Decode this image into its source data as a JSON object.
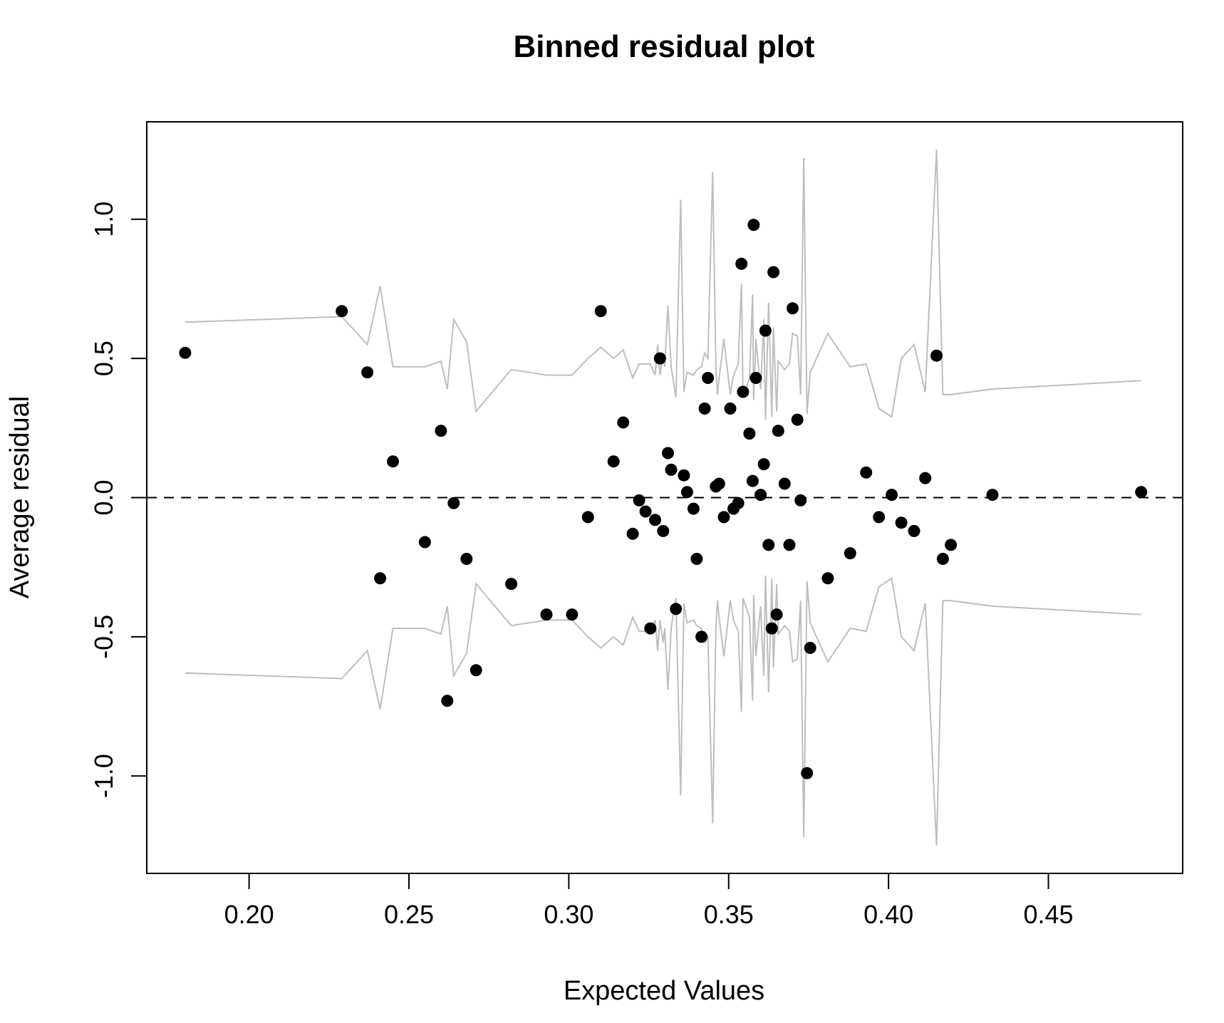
{
  "chart_data": {
    "type": "scatter",
    "title": "Binned residual plot",
    "xlabel": "Expected Values",
    "ylabel": "Average residual",
    "xlim": [
      0.168,
      0.492
    ],
    "ylim": [
      -1.35,
      1.35
    ],
    "xticks": [
      0.2,
      0.25,
      0.3,
      0.35,
      0.4,
      0.45
    ],
    "xtick_labels": [
      "0.20",
      "0.25",
      "0.30",
      "0.35",
      "0.40",
      "0.45"
    ],
    "yticks": [
      -1.0,
      -0.5,
      0.0,
      0.5,
      1.0
    ],
    "ytick_labels": [
      "-1.0",
      "-0.5",
      "0.0",
      "0.5",
      "1.0"
    ],
    "reference_line": {
      "y": 0,
      "style": "dashed"
    },
    "grid": false,
    "colors": {
      "points": "#000000",
      "bands": "#bebebe",
      "axes": "#000000"
    },
    "series": [
      {
        "type": "scatter",
        "x": [
          0.18,
          0.229,
          0.237,
          0.241,
          0.245,
          0.255,
          0.26,
          0.262,
          0.264,
          0.268,
          0.271,
          0.282,
          0.293,
          0.301,
          0.306,
          0.31,
          0.314,
          0.317,
          0.32,
          0.322,
          0.324,
          0.3255,
          0.327,
          0.3285,
          0.3295,
          0.331,
          0.332,
          0.3335,
          0.336,
          0.337,
          0.339,
          0.34,
          0.3415,
          0.3425,
          0.3435,
          0.346,
          0.347,
          0.3485,
          0.3505,
          0.3515,
          0.353,
          0.354,
          0.3545,
          0.3565,
          0.3575,
          0.3578,
          0.3585,
          0.36,
          0.361,
          0.3615,
          0.3625,
          0.3635,
          0.364,
          0.365,
          0.3655,
          0.3675,
          0.369,
          0.37,
          0.3715,
          0.3725,
          0.3745,
          0.3755,
          0.381,
          0.388,
          0.393,
          0.397,
          0.401,
          0.404,
          0.408,
          0.4115,
          0.415,
          0.417,
          0.4195,
          0.4325,
          0.479
        ],
        "y": [
          0.52,
          0.67,
          0.45,
          -0.29,
          0.13,
          -0.16,
          0.24,
          -0.73,
          -0.02,
          -0.22,
          -0.62,
          -0.31,
          -0.42,
          -0.42,
          -0.07,
          0.67,
          0.13,
          0.27,
          -0.13,
          -0.01,
          -0.05,
          -0.47,
          -0.08,
          0.5,
          -0.12,
          0.16,
          0.1,
          -0.4,
          0.08,
          0.02,
          -0.04,
          -0.22,
          -0.5,
          0.32,
          0.43,
          0.04,
          0.05,
          -0.07,
          0.32,
          -0.04,
          -0.02,
          0.84,
          0.38,
          0.23,
          0.06,
          0.98,
          0.43,
          0.01,
          0.12,
          0.6,
          -0.17,
          -0.47,
          0.81,
          -0.42,
          0.24,
          0.05,
          -0.17,
          0.68,
          0.28,
          -0.01,
          -0.99,
          -0.54,
          -0.29,
          -0.2,
          0.09,
          -0.07,
          0.01,
          -0.09,
          -0.12,
          0.07,
          0.51,
          -0.22,
          -0.17,
          0.01,
          0.02
        ]
      },
      {
        "type": "line",
        "x": [
          0.18,
          0.229,
          0.237,
          0.241,
          0.245,
          0.255,
          0.26,
          0.262,
          0.264,
          0.268,
          0.271,
          0.282,
          0.293,
          0.301,
          0.306,
          0.31,
          0.314,
          0.317,
          0.32,
          0.322,
          0.324,
          0.3255,
          0.327,
          0.3278,
          0.3285,
          0.3295,
          0.33,
          0.331,
          0.332,
          0.3335,
          0.335,
          0.336,
          0.337,
          0.339,
          0.34,
          0.3415,
          0.3425,
          0.3435,
          0.345,
          0.346,
          0.3465,
          0.347,
          0.3485,
          0.3505,
          0.3515,
          0.353,
          0.354,
          0.3545,
          0.3565,
          0.3575,
          0.3578,
          0.3585,
          0.36,
          0.361,
          0.3615,
          0.3625,
          0.3635,
          0.364,
          0.365,
          0.3655,
          0.3675,
          0.369,
          0.37,
          0.3715,
          0.3725,
          0.3735,
          0.3745,
          0.3755,
          0.381,
          0.388,
          0.393,
          0.397,
          0.401,
          0.404,
          0.408,
          0.4115,
          0.415,
          0.417,
          0.4195,
          0.4325,
          0.479
        ],
        "y": [
          0.63,
          0.65,
          0.55,
          0.76,
          0.47,
          0.47,
          0.49,
          0.39,
          0.64,
          0.56,
          0.31,
          0.46,
          0.44,
          0.44,
          0.5,
          0.54,
          0.5,
          0.53,
          0.43,
          0.48,
          0.48,
          0.48,
          0.44,
          0.55,
          0.44,
          0.52,
          0.47,
          0.69,
          0.47,
          0.36,
          1.07,
          0.38,
          0.45,
          0.44,
          0.46,
          0.47,
          0.52,
          0.5,
          1.17,
          0.47,
          0.37,
          0.43,
          0.57,
          0.37,
          0.44,
          0.48,
          0.77,
          0.36,
          0.43,
          0.73,
          0.35,
          0.57,
          0.39,
          0.64,
          0.28,
          0.7,
          0.29,
          0.61,
          0.31,
          0.49,
          0.46,
          0.48,
          0.59,
          0.58,
          0.37,
          1.22,
          0.3,
          0.45,
          0.59,
          0.47,
          0.48,
          0.32,
          0.29,
          0.5,
          0.55,
          0.38,
          1.25,
          0.37,
          0.37,
          0.39,
          0.42
        ]
      },
      {
        "type": "line",
        "x": [
          0.18,
          0.229,
          0.237,
          0.241,
          0.245,
          0.255,
          0.26,
          0.262,
          0.264,
          0.268,
          0.271,
          0.282,
          0.293,
          0.301,
          0.306,
          0.31,
          0.314,
          0.317,
          0.32,
          0.322,
          0.324,
          0.3255,
          0.327,
          0.3278,
          0.3285,
          0.3295,
          0.33,
          0.331,
          0.332,
          0.3335,
          0.335,
          0.336,
          0.337,
          0.339,
          0.34,
          0.3415,
          0.3425,
          0.3435,
          0.345,
          0.346,
          0.3465,
          0.347,
          0.3485,
          0.3505,
          0.3515,
          0.353,
          0.354,
          0.3545,
          0.3565,
          0.3575,
          0.3578,
          0.3585,
          0.36,
          0.361,
          0.3615,
          0.3625,
          0.3635,
          0.364,
          0.365,
          0.3655,
          0.3675,
          0.369,
          0.37,
          0.3715,
          0.3725,
          0.3735,
          0.3745,
          0.3755,
          0.381,
          0.388,
          0.393,
          0.397,
          0.401,
          0.404,
          0.408,
          0.4115,
          0.415,
          0.417,
          0.4195,
          0.4325,
          0.479
        ],
        "y": [
          -0.63,
          -0.65,
          -0.55,
          -0.76,
          -0.47,
          -0.47,
          -0.49,
          -0.39,
          -0.64,
          -0.56,
          -0.31,
          -0.46,
          -0.44,
          -0.44,
          -0.5,
          -0.54,
          -0.5,
          -0.53,
          -0.43,
          -0.48,
          -0.48,
          -0.48,
          -0.44,
          -0.55,
          -0.44,
          -0.52,
          -0.47,
          -0.69,
          -0.47,
          -0.36,
          -1.07,
          -0.38,
          -0.45,
          -0.44,
          -0.46,
          -0.47,
          -0.52,
          -0.5,
          -1.17,
          -0.47,
          -0.37,
          -0.43,
          -0.57,
          -0.37,
          -0.44,
          -0.48,
          -0.77,
          -0.36,
          -0.43,
          -0.73,
          -0.35,
          -0.57,
          -0.39,
          -0.64,
          -0.28,
          -0.7,
          -0.29,
          -0.61,
          -0.31,
          -0.49,
          -0.46,
          -0.48,
          -0.59,
          -0.58,
          -0.37,
          -1.22,
          -0.3,
          -0.45,
          -0.59,
          -0.47,
          -0.48,
          -0.32,
          -0.29,
          -0.5,
          -0.55,
          -0.38,
          -1.25,
          -0.37,
          -0.37,
          -0.39,
          -0.42
        ]
      }
    ]
  }
}
